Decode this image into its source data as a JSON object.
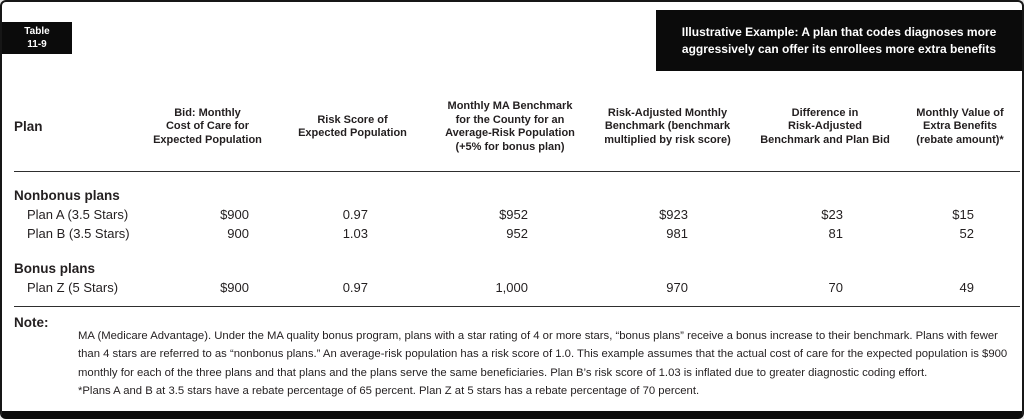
{
  "tag": {
    "line1": "Table",
    "line2": "11-9"
  },
  "banner": {
    "line1": "Illustrative Example: A plan that codes diagnoses more",
    "line2": "aggressively can offer its enrollees more extra benefits"
  },
  "table": {
    "columns": [
      "Plan",
      "Bid: Monthly\nCost of Care for\nExpected Population",
      "Risk Score of\nExpected Population",
      "Monthly MA Benchmark\nfor the County for an\nAverage-Risk Population\n(+5% for bonus plan)",
      "Risk-Adjusted Monthly\nBenchmark (benchmark\nmultiplied by risk score)",
      "Difference in\nRisk-Adjusted\nBenchmark and Plan Bid",
      "Monthly Value of\nExtra Benefits\n(rebate amount)*"
    ],
    "sections": [
      {
        "header": "Nonbonus plans",
        "rows": [
          {
            "plan": "Plan A (3.5 Stars)",
            "bid": "$900",
            "risk_score": "0.97",
            "benchmark": "$952",
            "risk_adjusted_benchmark": "$923",
            "difference": "$23",
            "extra_benefits": "$15"
          },
          {
            "plan": "Plan B (3.5 Stars)",
            "bid": "900",
            "risk_score": "1.03",
            "benchmark": "952",
            "risk_adjusted_benchmark": "981",
            "difference": "81",
            "extra_benefits": "52"
          }
        ]
      },
      {
        "header": "Bonus plans",
        "rows": [
          {
            "plan": "Plan Z (5 Stars)",
            "bid": "$900",
            "risk_score": "0.97",
            "benchmark": "1,000",
            "risk_adjusted_benchmark": "970",
            "difference": "70",
            "extra_benefits": "49"
          }
        ]
      }
    ]
  },
  "note": {
    "label": "Note:",
    "lines": [
      "MA (Medicare Advantage). Under the MA quality bonus program, plans with a star rating of 4 or more stars, “bonus plans” receive a bonus increase to their benchmark. Plans with fewer",
      "than 4 stars are referred to as “nonbonus plans.” An average-risk population has a risk score of 1.0. This example assumes that the actual cost of care for the expected population is $900",
      "monthly for each of the three plans and that plans and the plans serve the same beneficiaries. Plan B’s risk score of 1.03 is inflated due to greater diagnostic coding effort.",
      "*Plans A and B at 3.5 stars have a rebate percentage of 65 percent. Plan Z at 5 stars has a rebate percentage of 70 percent."
    ]
  },
  "colors": {
    "box_bg": "#0b0b0b",
    "text": "#231f20",
    "rule": "#2e2e2e",
    "background": "#ffffff"
  }
}
